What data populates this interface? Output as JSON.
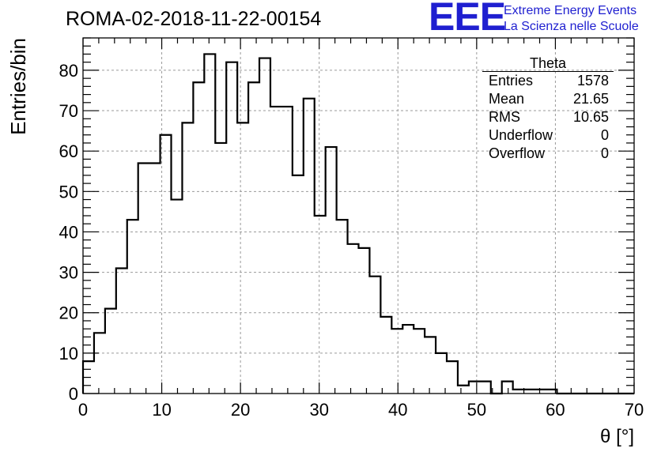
{
  "chart_data": {
    "type": "bar",
    "title": "ROMA-02-2018-11-22-00154",
    "xlabel": "θ [°]",
    "ylabel": "Entries/bin",
    "xlim": [
      0,
      70
    ],
    "ylim": [
      0,
      88
    ],
    "grid": true,
    "bin_width": 1.4,
    "x_ticks": [
      0,
      10,
      20,
      30,
      40,
      50,
      60,
      70
    ],
    "y_ticks": [
      0,
      10,
      20,
      30,
      40,
      50,
      60,
      70,
      80
    ],
    "values": [
      8,
      15,
      21,
      31,
      43,
      57,
      57,
      64,
      48,
      67,
      77,
      84,
      62,
      82,
      67,
      77,
      83,
      71,
      71,
      54,
      73,
      44,
      61,
      43,
      37,
      36,
      29,
      19,
      16,
      17,
      16,
      14,
      10,
      8,
      2,
      3,
      3,
      0,
      3,
      1,
      1,
      1,
      1,
      0,
      0,
      0,
      0,
      0,
      0,
      0
    ],
    "stats": {
      "title": "Theta",
      "rows": [
        {
          "label": "Entries",
          "value": "1578"
        },
        {
          "label": "Mean",
          "value": "21.65"
        },
        {
          "label": "RMS",
          "value": "10.65"
        },
        {
          "label": "Underflow",
          "value": "0"
        },
        {
          "label": "Overflow",
          "value": "0"
        }
      ]
    },
    "logo": {
      "mark": "EEE",
      "line1": "Extreme Energy Events",
      "line2": "La Scienza nelle Scuole",
      "color": "#1f1fd0"
    }
  }
}
